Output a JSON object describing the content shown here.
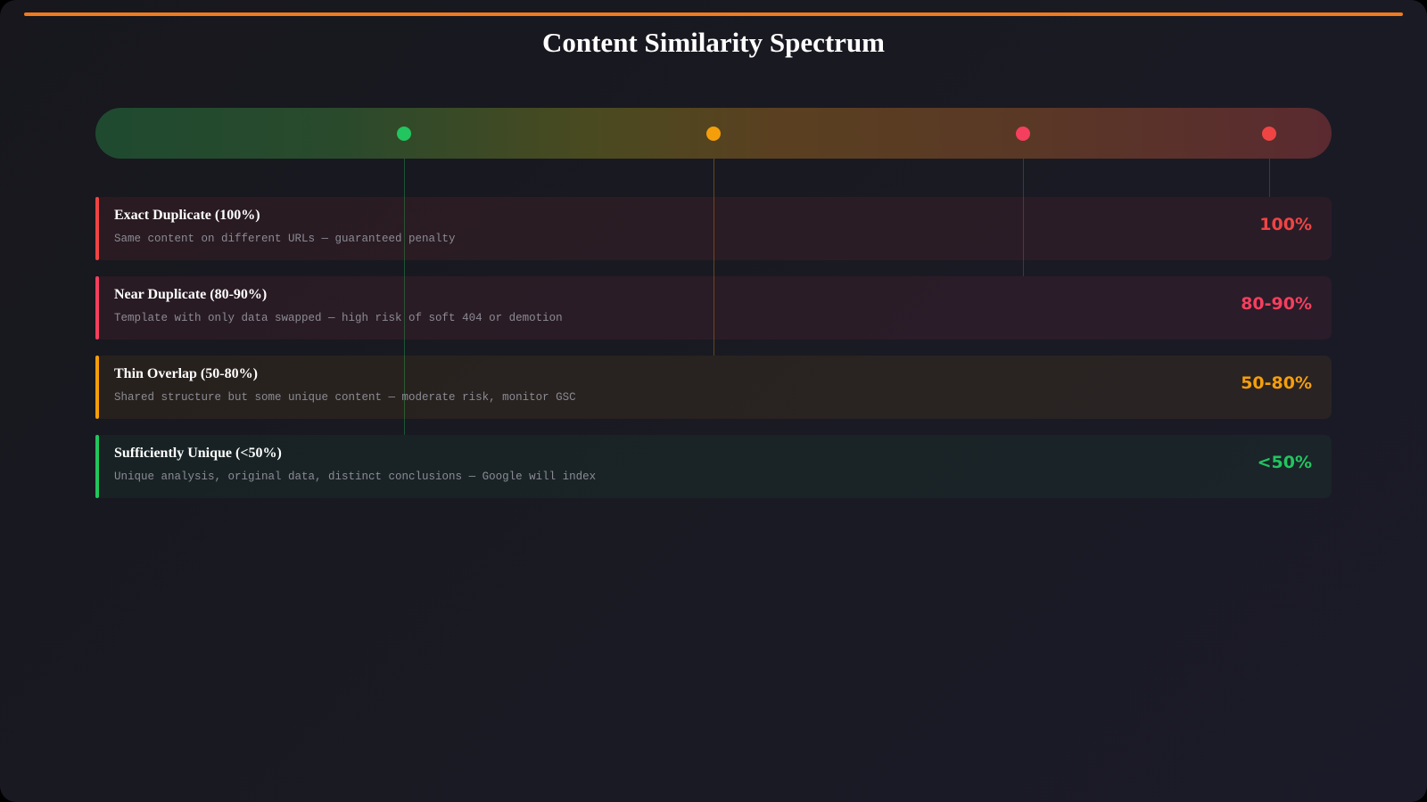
{
  "title": "Content Similarity Spectrum",
  "colors": {
    "accent_line": "#f07a1e",
    "green": "#22c55e",
    "orange": "#f59e0b",
    "rose": "#f43f5e",
    "red": "#ef4444"
  },
  "spectrum_markers": [
    {
      "color": "#22c55e",
      "label_ref": "Sufficiently Unique"
    },
    {
      "color": "#f59e0b",
      "label_ref": "Thin Overlap"
    },
    {
      "color": "#f43f5e",
      "label_ref": "Near Duplicate"
    },
    {
      "color": "#ef4444",
      "label_ref": "Exact Duplicate"
    }
  ],
  "tiers": [
    {
      "heading": "Exact Duplicate (100%)",
      "description": "Same content on different URLs — guaranteed penalty",
      "percent": "100%",
      "color": "#ef4444"
    },
    {
      "heading": "Near Duplicate (80-90%)",
      "description": "Template with only data swapped — high risk of soft 404 or demotion",
      "percent": "80-90%",
      "color": "#f43f5e"
    },
    {
      "heading": "Thin Overlap (50-80%)",
      "description": "Shared structure but some unique content — moderate risk, monitor GSC",
      "percent": "50-80%",
      "color": "#f59e0b"
    },
    {
      "heading": "Sufficiently Unique (<50%)",
      "description": "Unique analysis, original data, distinct conclusions — Google will index",
      "percent": "<50%",
      "color": "#22c55e"
    }
  ]
}
